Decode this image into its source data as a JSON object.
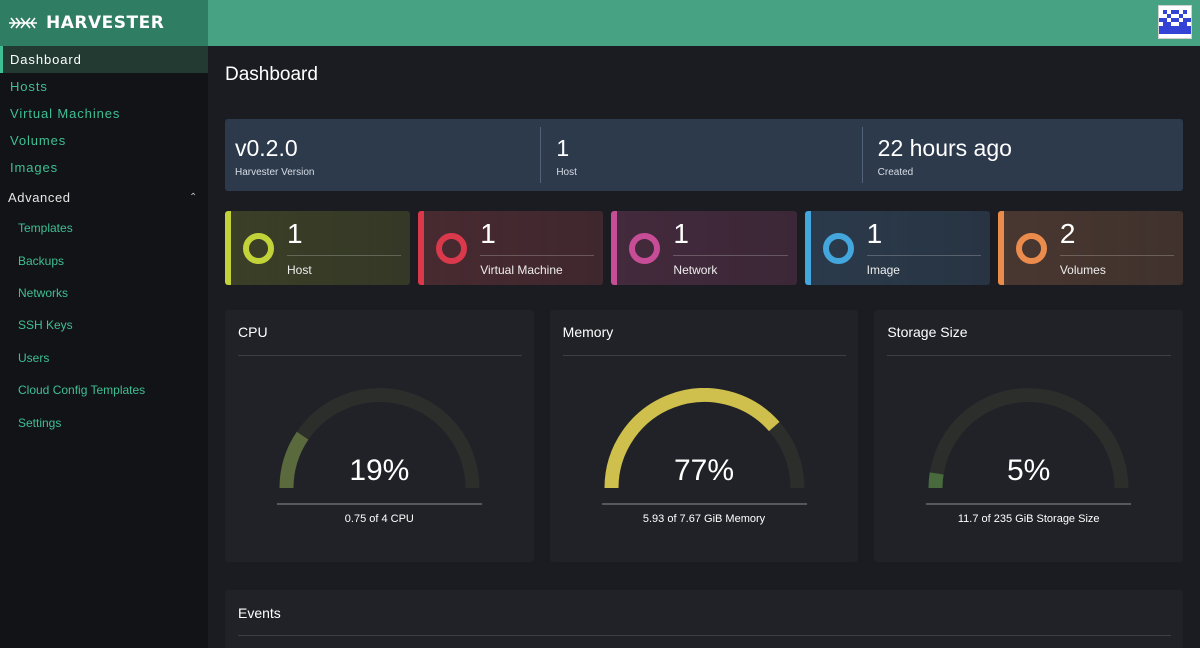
{
  "brand": {
    "name": "HARVESTER"
  },
  "sidebar": {
    "items": [
      {
        "label": "Dashboard",
        "active": true
      },
      {
        "label": "Hosts"
      },
      {
        "label": "Virtual Machines"
      },
      {
        "label": "Volumes"
      },
      {
        "label": "Images"
      }
    ],
    "advanced": {
      "label": "Advanced",
      "items": [
        "Templates",
        "Backups",
        "Networks",
        "SSH Keys",
        "Users",
        "Cloud Config Templates",
        "Settings"
      ]
    }
  },
  "page": {
    "title": "Dashboard"
  },
  "summary": [
    {
      "value": "v0.2.0",
      "label": "Harvester Version"
    },
    {
      "value": "1",
      "label": "Host"
    },
    {
      "value": "22 hours ago",
      "label": "Created"
    }
  ],
  "tiles": [
    {
      "count": "1",
      "label": "Host",
      "color": "#c2d33a",
      "bg": "#3b3f27"
    },
    {
      "count": "1",
      "label": "Virtual Machine",
      "color": "#d9394a",
      "bg": "#482a31"
    },
    {
      "count": "1",
      "label": "Network",
      "color": "#c84d97",
      "bg": "#432a3c"
    },
    {
      "count": "1",
      "label": "Image",
      "color": "#43a6dc",
      "bg": "#2b3a4b"
    },
    {
      "count": "2",
      "label": "Volumes",
      "color": "#ec8c4c",
      "bg": "#493730"
    }
  ],
  "gauges": [
    {
      "title": "CPU",
      "percent_text": "19%",
      "fraction": 0.19,
      "desc": "0.75 of 4 CPU",
      "color": "#5a6a3d"
    },
    {
      "title": "Memory",
      "percent_text": "77%",
      "fraction": 0.77,
      "desc": "5.93 of 7.67 GiB Memory",
      "color": "#cfc04d"
    },
    {
      "title": "Storage Size",
      "percent_text": "5%",
      "fraction": 0.05,
      "desc": "11.7 of 235 GiB Storage Size",
      "color": "#486a3d"
    }
  ],
  "events": {
    "title": "Events"
  }
}
